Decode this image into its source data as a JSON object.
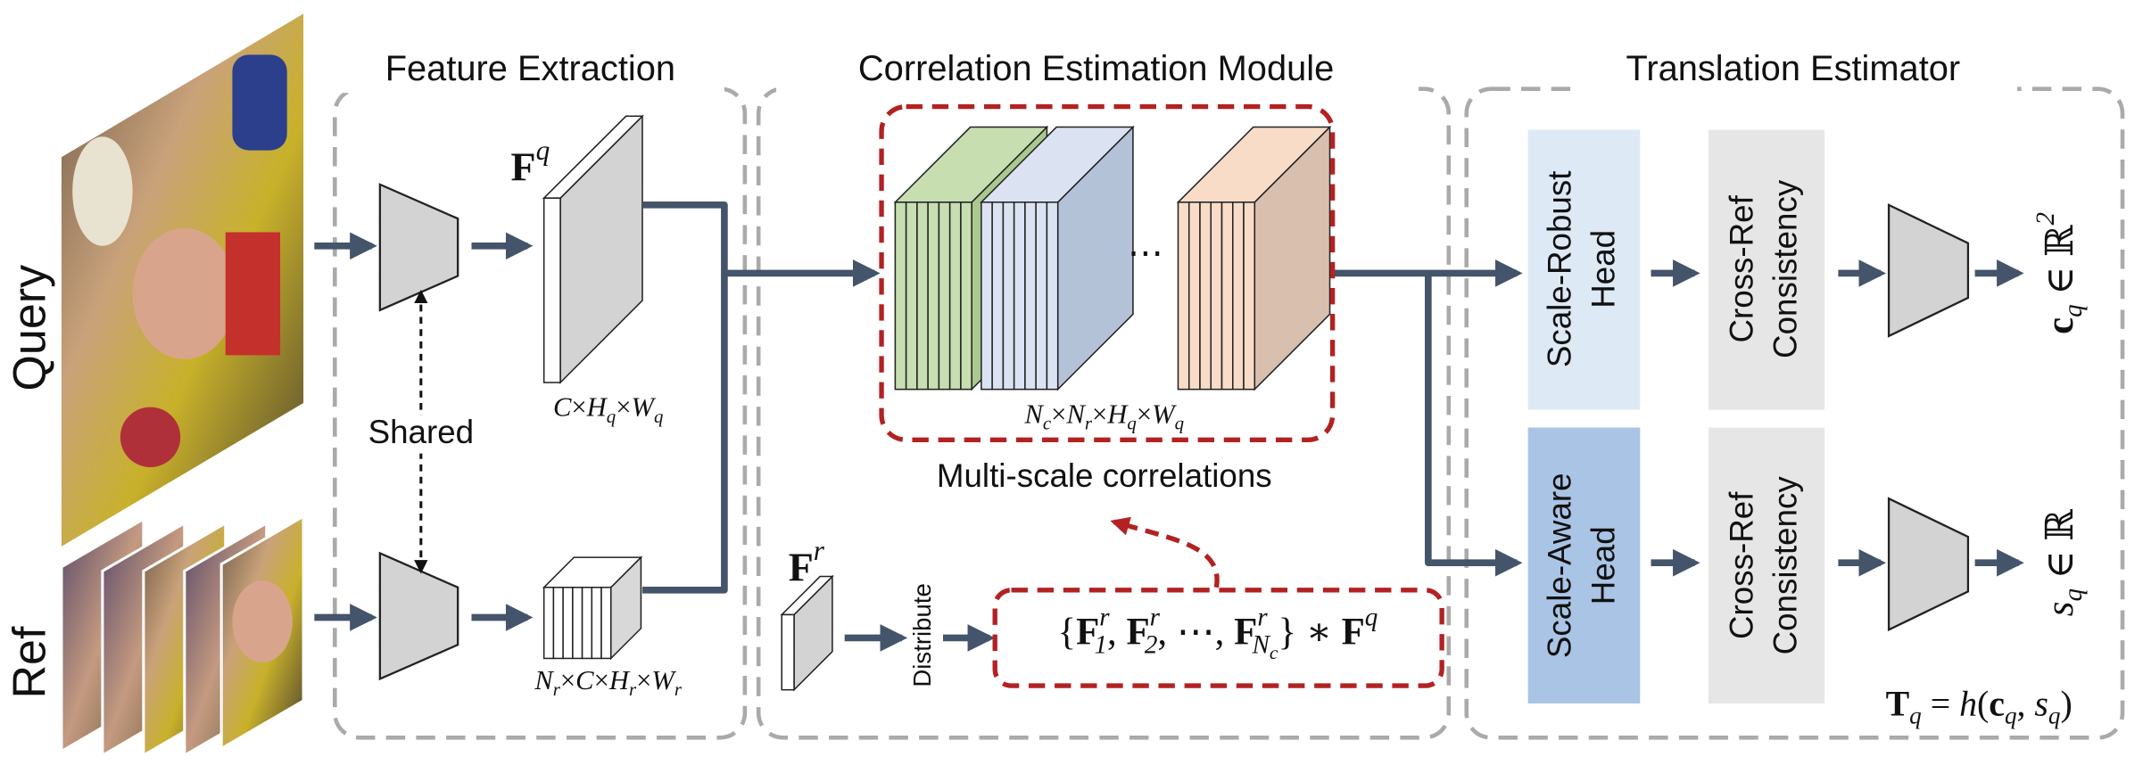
{
  "inputs": {
    "query": "Query",
    "ref": "Ref"
  },
  "sections": {
    "feature_extraction": "Feature Extraction",
    "correlation": "Correlation Estimation Module",
    "translation": "Translation Estimator"
  },
  "feature_extraction": {
    "shared": "Shared",
    "query_feature": [
      {
        "bold": "F"
      },
      {
        "sup": "q"
      }
    ],
    "query_shape": [
      {
        "italic": "C"
      },
      {
        "text": "×"
      },
      {
        "italic": "H"
      },
      {
        "sub": "q"
      },
      {
        "text": "×"
      },
      {
        "italic": "W"
      },
      {
        "sub": "q"
      }
    ],
    "ref_shape": [
      {
        "italic": "N"
      },
      {
        "sub": "r"
      },
      {
        "text": "×"
      },
      {
        "italic": "C"
      },
      {
        "text": "×"
      },
      {
        "italic": "H"
      },
      {
        "sub": "r"
      },
      {
        "text": "×"
      },
      {
        "italic": "W"
      },
      {
        "sub": "r"
      }
    ]
  },
  "correlation": {
    "ellipsis": "⋯",
    "shape": [
      {
        "italic": "N"
      },
      {
        "sub": "c"
      },
      {
        "text": "×"
      },
      {
        "italic": "N"
      },
      {
        "sub": "r"
      },
      {
        "text": "×"
      },
      {
        "italic": "H"
      },
      {
        "sub": "q"
      },
      {
        "text": "×"
      },
      {
        "italic": "W"
      },
      {
        "sub": "q"
      }
    ],
    "caption": "Multi-scale correlations",
    "ref_feature": [
      {
        "bold": "F"
      },
      {
        "sup": "r"
      }
    ],
    "distribute": "Distribute",
    "formula": [
      {
        "text": "{"
      },
      {
        "bold": "F"
      },
      {
        "sup": "r"
      },
      {
        "sub": "1"
      },
      {
        "text": ", "
      },
      {
        "bold": "F"
      },
      {
        "sup": "r"
      },
      {
        "sub": "2"
      },
      {
        "text": ", ⋯, "
      },
      {
        "bold": "F"
      },
      {
        "sup": "r"
      },
      {
        "sub": "N"
      },
      {
        "subsub": "c"
      },
      {
        "text": "} ∗ "
      },
      {
        "bold": "F"
      },
      {
        "sup": "q"
      }
    ]
  },
  "translation": {
    "robust_head": [
      "Scale-Robust",
      "Head"
    ],
    "aware_head": [
      "Scale-Aware",
      "Head"
    ],
    "consistency_top": [
      "Cross-Ref",
      "Consistency"
    ],
    "consistency_bottom": [
      "Cross-Ref",
      "Consistency"
    ],
    "center_output": [
      {
        "bold": "c"
      },
      {
        "sub": "q"
      },
      {
        "text": " ∈ ℝ"
      },
      {
        "sup": "2"
      }
    ],
    "scale_output": [
      {
        "italic": "s"
      },
      {
        "sub": "q"
      },
      {
        "text": " ∈ ℝ"
      }
    ],
    "pose": [
      {
        "bold": "T"
      },
      {
        "sub": "q"
      },
      {
        "text": " = "
      },
      {
        "italic": "h"
      },
      {
        "text": "("
      },
      {
        "bold": "c"
      },
      {
        "sub": "q"
      },
      {
        "text": ", "
      },
      {
        "italic": "s"
      },
      {
        "sub": "q"
      },
      {
        "text": ")"
      }
    ]
  }
}
